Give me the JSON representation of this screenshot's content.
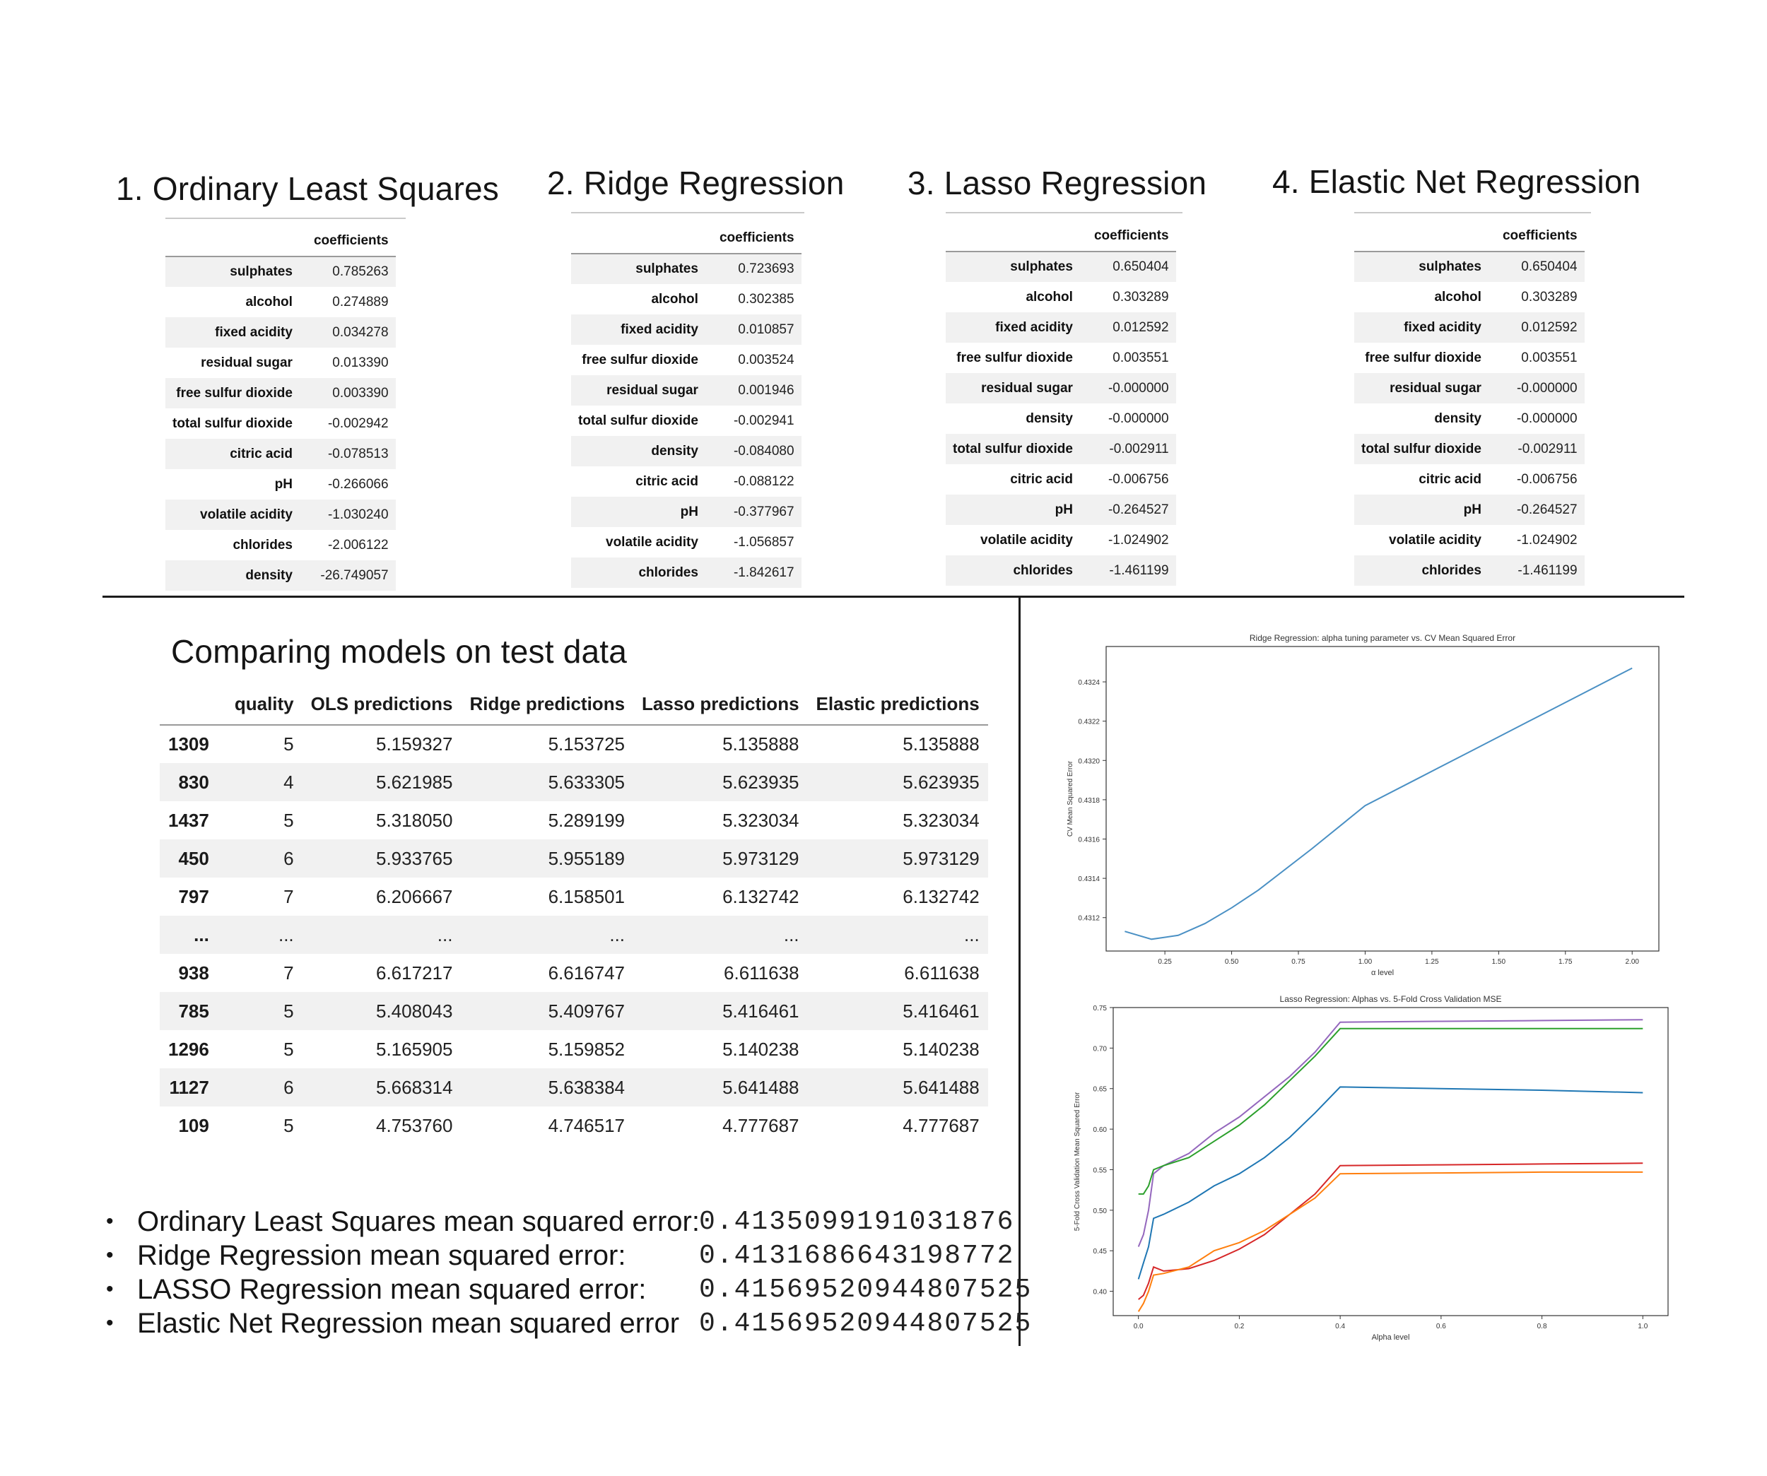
{
  "models": [
    {
      "title": "1. Ordinary Least Squares",
      "column": "coefficients",
      "rows": [
        {
          "name": "sulphates",
          "value": "0.785263"
        },
        {
          "name": "alcohol",
          "value": "0.274889"
        },
        {
          "name": "fixed acidity",
          "value": "0.034278"
        },
        {
          "name": "residual sugar",
          "value": "0.013390"
        },
        {
          "name": "free sulfur dioxide",
          "value": "0.003390"
        },
        {
          "name": "total sulfur dioxide",
          "value": "-0.002942"
        },
        {
          "name": "citric acid",
          "value": "-0.078513"
        },
        {
          "name": "pH",
          "value": "-0.266066"
        },
        {
          "name": "volatile acidity",
          "value": "-1.030240"
        },
        {
          "name": "chlorides",
          "value": "-2.006122"
        },
        {
          "name": "density",
          "value": "-26.749057"
        }
      ]
    },
    {
      "title": "2. Ridge Regression",
      "column": "coefficients",
      "rows": [
        {
          "name": "sulphates",
          "value": "0.723693"
        },
        {
          "name": "alcohol",
          "value": "0.302385"
        },
        {
          "name": "fixed acidity",
          "value": "0.010857"
        },
        {
          "name": "free sulfur dioxide",
          "value": "0.003524"
        },
        {
          "name": "residual sugar",
          "value": "0.001946"
        },
        {
          "name": "total sulfur dioxide",
          "value": "-0.002941"
        },
        {
          "name": "density",
          "value": "-0.084080"
        },
        {
          "name": "citric acid",
          "value": "-0.088122"
        },
        {
          "name": "pH",
          "value": "-0.377967"
        },
        {
          "name": "volatile acidity",
          "value": "-1.056857"
        },
        {
          "name": "chlorides",
          "value": "-1.842617"
        }
      ]
    },
    {
      "title": "3. Lasso Regression",
      "column": "coefficients",
      "rows": [
        {
          "name": "sulphates",
          "value": "0.650404"
        },
        {
          "name": "alcohol",
          "value": "0.303289"
        },
        {
          "name": "fixed acidity",
          "value": "0.012592"
        },
        {
          "name": "free sulfur dioxide",
          "value": "0.003551"
        },
        {
          "name": "residual sugar",
          "value": "-0.000000"
        },
        {
          "name": "density",
          "value": "-0.000000"
        },
        {
          "name": "total sulfur dioxide",
          "value": "-0.002911"
        },
        {
          "name": "citric acid",
          "value": "-0.006756"
        },
        {
          "name": "pH",
          "value": "-0.264527"
        },
        {
          "name": "volatile acidity",
          "value": "-1.024902"
        },
        {
          "name": "chlorides",
          "value": "-1.461199"
        }
      ]
    },
    {
      "title": "4. Elastic Net Regression",
      "column": "coefficients",
      "rows": [
        {
          "name": "sulphates",
          "value": "0.650404"
        },
        {
          "name": "alcohol",
          "value": "0.303289"
        },
        {
          "name": "fixed acidity",
          "value": "0.012592"
        },
        {
          "name": "free sulfur dioxide",
          "value": "0.003551"
        },
        {
          "name": "residual sugar",
          "value": "-0.000000"
        },
        {
          "name": "density",
          "value": "-0.000000"
        },
        {
          "name": "total sulfur dioxide",
          "value": "-0.002911"
        },
        {
          "name": "citric acid",
          "value": "-0.006756"
        },
        {
          "name": "pH",
          "value": "-0.264527"
        },
        {
          "name": "volatile acidity",
          "value": "-1.024902"
        },
        {
          "name": "chlorides",
          "value": "-1.461199"
        }
      ]
    }
  ],
  "comparison": {
    "title": "Comparing models on test data",
    "columns": [
      "",
      "quality",
      "OLS predictions",
      "Ridge predictions",
      "Lasso predictions",
      "Elastic predictions"
    ],
    "rows": [
      [
        "1309",
        "5",
        "5.159327",
        "5.153725",
        "5.135888",
        "5.135888"
      ],
      [
        "830",
        "4",
        "5.621985",
        "5.633305",
        "5.623935",
        "5.623935"
      ],
      [
        "1437",
        "5",
        "5.318050",
        "5.289199",
        "5.323034",
        "5.323034"
      ],
      [
        "450",
        "6",
        "5.933765",
        "5.955189",
        "5.973129",
        "5.973129"
      ],
      [
        "797",
        "7",
        "6.206667",
        "6.158501",
        "6.132742",
        "6.132742"
      ],
      [
        "...",
        "...",
        "...",
        "...",
        "...",
        "..."
      ],
      [
        "938",
        "7",
        "6.617217",
        "6.616747",
        "6.611638",
        "6.611638"
      ],
      [
        "785",
        "5",
        "5.408043",
        "5.409767",
        "5.416461",
        "5.416461"
      ],
      [
        "1296",
        "5",
        "5.165905",
        "5.159852",
        "5.140238",
        "5.140238"
      ],
      [
        "1127",
        "6",
        "5.668314",
        "5.638384",
        "5.641488",
        "5.641488"
      ],
      [
        "109",
        "5",
        "4.753760",
        "4.746517",
        "4.777687",
        "4.777687"
      ]
    ]
  },
  "mse": [
    {
      "label": "Ordinary Least Squares mean squared error:",
      "value": "0.4135099191031876"
    },
    {
      "label": "Ridge Regression mean squared error:",
      "value": "0.4131686643198772"
    },
    {
      "label": "LASSO Regression mean squared error:",
      "value": "0.41569520944807525"
    },
    {
      "label": "Elastic Net Regression mean squared error",
      "value": "0.41569520944807525"
    }
  ],
  "chart_data": [
    {
      "type": "line",
      "title": "Ridge Regression: alpha tuning parameter vs. CV Mean Squared Error",
      "xlabel": "α level",
      "ylabel": "CV Mean Squared Error",
      "xlim": [
        0.03,
        2.1
      ],
      "ylim": [
        0.43103,
        0.43258
      ],
      "xticks": [
        "0.25",
        "0.50",
        "0.75",
        "1.00",
        "1.25",
        "1.50",
        "1.75",
        "2.00"
      ],
      "yticks": [
        "0.4312",
        "0.4314",
        "0.4316",
        "0.4318",
        "0.4320",
        "0.4322",
        "0.4324"
      ],
      "grid": false,
      "series": [
        {
          "color": "#4a90c4",
          "x": [
            0.1,
            0.2,
            0.3,
            0.4,
            0.5,
            0.6,
            0.8,
            1.0,
            1.2,
            1.4,
            1.6,
            1.8,
            2.0
          ],
          "y": [
            0.43113,
            0.43109,
            0.43111,
            0.43117,
            0.43125,
            0.43134,
            0.43155,
            0.43177,
            0.43191,
            0.43205,
            0.43219,
            0.43233,
            0.43247
          ]
        }
      ]
    },
    {
      "type": "line",
      "title": "Lasso Regression: Alphas vs. 5-Fold Cross Validation MSE",
      "xlabel": "Alpha level",
      "ylabel": "5-Fold Cross Validation Mean Squared Error",
      "xlim": [
        -0.05,
        1.05
      ],
      "ylim": [
        0.37,
        0.75
      ],
      "xticks": [
        "0.0",
        "0.2",
        "0.4",
        "0.6",
        "0.8",
        "1.0"
      ],
      "yticks": [
        "0.40",
        "0.45",
        "0.50",
        "0.55",
        "0.60",
        "0.65",
        "0.70",
        "0.75"
      ],
      "grid": false,
      "series": [
        {
          "color": "#9467bd",
          "x": [
            0.0,
            0.01,
            0.02,
            0.03,
            0.05,
            0.1,
            0.15,
            0.2,
            0.25,
            0.3,
            0.35,
            0.4,
            0.6,
            0.8,
            1.0
          ],
          "y": [
            0.455,
            0.47,
            0.5,
            0.545,
            0.555,
            0.57,
            0.595,
            0.615,
            0.64,
            0.665,
            0.695,
            0.732,
            0.733,
            0.734,
            0.735
          ]
        },
        {
          "color": "#2ca02c",
          "x": [
            0.0,
            0.01,
            0.02,
            0.03,
            0.05,
            0.1,
            0.15,
            0.2,
            0.25,
            0.3,
            0.35,
            0.4,
            0.6,
            0.8,
            1.0
          ],
          "y": [
            0.52,
            0.52,
            0.53,
            0.55,
            0.555,
            0.565,
            0.585,
            0.605,
            0.63,
            0.66,
            0.69,
            0.724,
            0.724,
            0.724,
            0.724
          ]
        },
        {
          "color": "#1f77b4",
          "x": [
            0.0,
            0.01,
            0.02,
            0.03,
            0.05,
            0.1,
            0.15,
            0.2,
            0.25,
            0.3,
            0.35,
            0.4,
            0.6,
            0.8,
            1.0
          ],
          "y": [
            0.415,
            0.435,
            0.455,
            0.49,
            0.495,
            0.51,
            0.53,
            0.545,
            0.565,
            0.59,
            0.62,
            0.652,
            0.65,
            0.648,
            0.645
          ]
        },
        {
          "color": "#d62728",
          "x": [
            0.0,
            0.01,
            0.02,
            0.03,
            0.05,
            0.1,
            0.15,
            0.2,
            0.25,
            0.3,
            0.35,
            0.4,
            0.6,
            0.8,
            1.0
          ],
          "y": [
            0.39,
            0.395,
            0.41,
            0.43,
            0.425,
            0.428,
            0.438,
            0.452,
            0.47,
            0.495,
            0.52,
            0.555,
            0.556,
            0.557,
            0.558
          ]
        },
        {
          "color": "#ff7f0e",
          "x": [
            0.0,
            0.01,
            0.02,
            0.03,
            0.05,
            0.1,
            0.15,
            0.2,
            0.25,
            0.3,
            0.35,
            0.4,
            0.6,
            0.8,
            1.0
          ],
          "y": [
            0.375,
            0.385,
            0.4,
            0.42,
            0.422,
            0.43,
            0.45,
            0.46,
            0.475,
            0.495,
            0.515,
            0.545,
            0.546,
            0.547,
            0.547
          ]
        }
      ]
    }
  ]
}
